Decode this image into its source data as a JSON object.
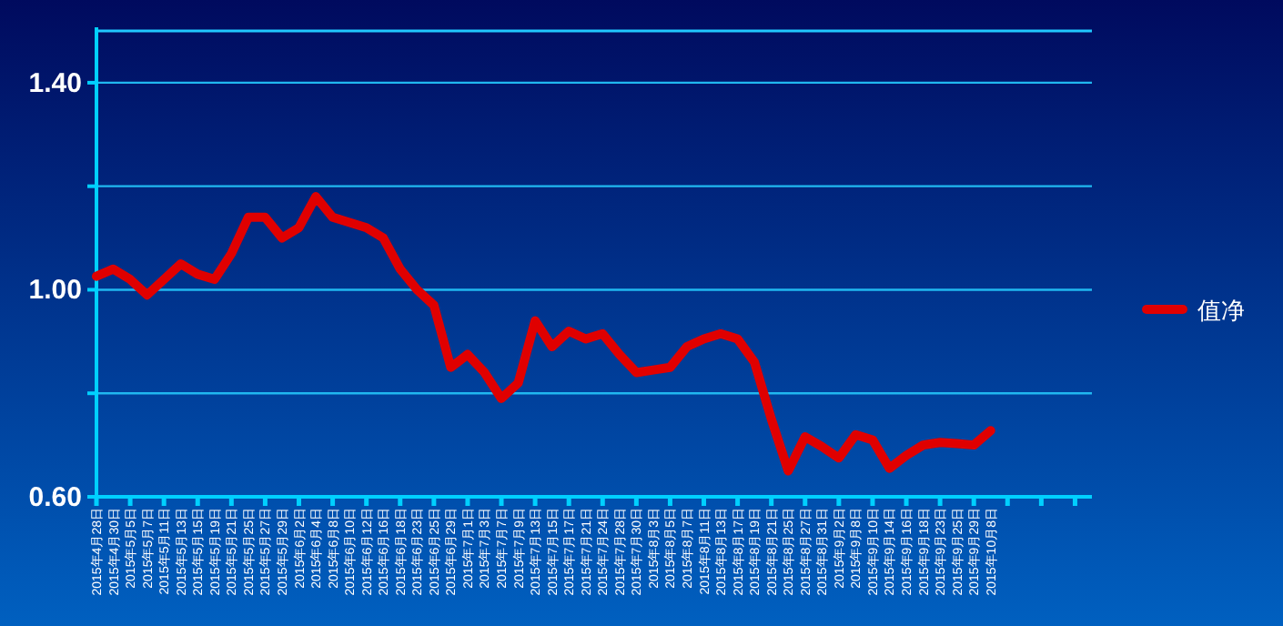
{
  "chart_data": {
    "type": "line",
    "categories": [
      "2015年4月28日",
      "2015年4月30日",
      "2015年5月5日",
      "2015年5月7日",
      "2015年5月11日",
      "2015年5月13日",
      "2015年5月15日",
      "2015年5月19日",
      "2015年5月21日",
      "2015年5月25日",
      "2015年5月27日",
      "2015年5月29日",
      "2015年6月2日",
      "2015年6月4日",
      "2015年6月8日",
      "2015年6月10日",
      "2015年6月12日",
      "2015年6月16日",
      "2015年6月18日",
      "2015年6月23日",
      "2015年6月25日",
      "2015年6月29日",
      "2015年7月1日",
      "2015年7月3日",
      "2015年7月7日",
      "2015年7月9日",
      "2015年7月13日",
      "2015年7月15日",
      "2015年7月17日",
      "2015年7月21日",
      "2015年7月24日",
      "2015年7月28日",
      "2015年7月30日",
      "2015年8月3日",
      "2015年8月5日",
      "2015年8月7日",
      "2015年8月11日",
      "2015年8月13日",
      "2015年8月17日",
      "2015年8月19日",
      "2015年8月21日",
      "2015年8月25日",
      "2015年8月27日",
      "2015年8月31日",
      "2015年9月2日",
      "2015年9月8日",
      "2015年9月10日",
      "2015年9月14日",
      "2015年9月16日",
      "2015年9月18日",
      "2015年9月23日",
      "2015年9月25日",
      "2015年9月29日",
      "2015年10月8日",
      null,
      null,
      null,
      null,
      null,
      null
    ],
    "series": [
      {
        "name": "值净",
        "color": "#e00000",
        "values": [
          1.026,
          1.04,
          1.02,
          0.99,
          1.02,
          1.05,
          1.03,
          1.02,
          1.07,
          1.14,
          1.14,
          1.1,
          1.12,
          1.18,
          1.14,
          1.13,
          1.12,
          1.1,
          1.04,
          1.0,
          0.97,
          0.85,
          0.875,
          0.84,
          0.79,
          0.82,
          0.94,
          0.89,
          0.92,
          0.905,
          0.915,
          0.875,
          0.84,
          0.845,
          0.85,
          0.89,
          0.905,
          0.915,
          0.905,
          0.86,
          0.75,
          0.65,
          0.716,
          0.697,
          0.675,
          0.72,
          0.71,
          0.655,
          0.68,
          0.7,
          0.705,
          0.703,
          0.7,
          0.728,
          null,
          null,
          null,
          null,
          null,
          null
        ]
      }
    ],
    "ylim": [
      0.6,
      1.5
    ],
    "yticks": [
      {
        "value": 0.6,
        "label": "0.60"
      },
      {
        "value": 0.8,
        "label": null
      },
      {
        "value": 1.0,
        "label": "1.00"
      },
      {
        "value": 1.2,
        "label": null
      },
      {
        "value": 1.4,
        "label": "1.40"
      }
    ],
    "grid": "y",
    "legend": "right",
    "marker": "none",
    "line_style": "solid"
  }
}
